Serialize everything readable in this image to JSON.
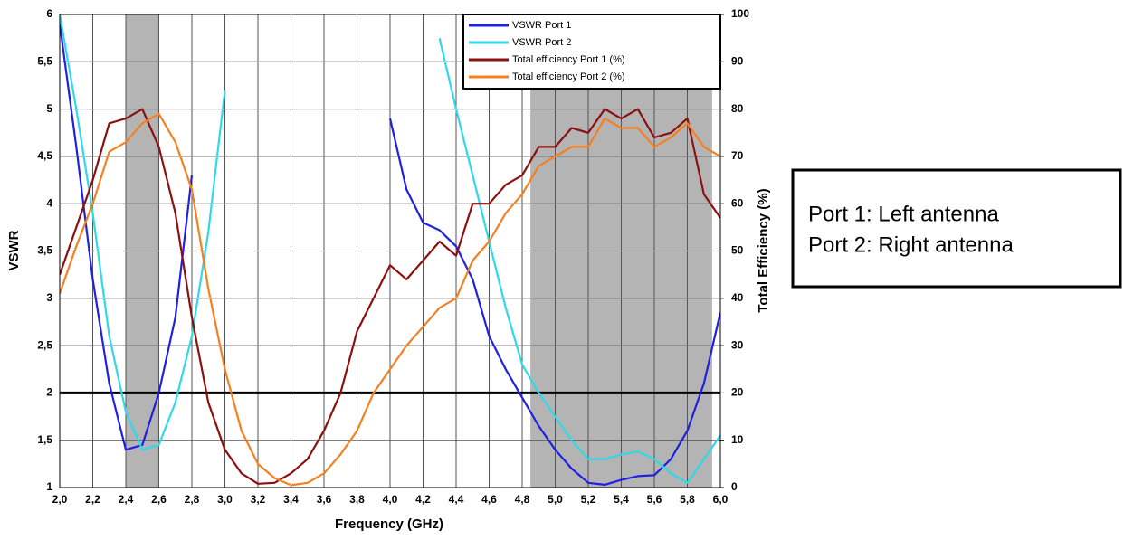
{
  "chart_data": {
    "type": "line",
    "x_label": "Frequency (GHz)",
    "y_label": "VSWR",
    "y2_label": "Total Efficiency (%)",
    "x": [
      2.0,
      2.1,
      2.2,
      2.3,
      2.4,
      2.5,
      2.6,
      2.7,
      2.8,
      2.9,
      3.0,
      3.1,
      3.2,
      3.3,
      3.4,
      3.5,
      3.6,
      3.7,
      3.8,
      3.9,
      4.0,
      4.1,
      4.2,
      4.3,
      4.4,
      4.5,
      4.6,
      4.7,
      4.8,
      4.9,
      5.0,
      5.1,
      5.2,
      5.3,
      5.4,
      5.5,
      5.6,
      5.7,
      5.8,
      5.9,
      6.0
    ],
    "series": [
      {
        "name": "VSWR Port 1",
        "color": "#2020e0",
        "values": [
          5.9,
          4.6,
          3.2,
          2.1,
          1.4,
          1.45,
          2.0,
          2.8,
          4.3,
          null,
          null,
          null,
          null,
          null,
          null,
          null,
          null,
          null,
          null,
          null,
          4.9,
          4.15,
          3.8,
          3.72,
          3.55,
          3.2,
          2.6,
          2.25,
          1.95,
          1.65,
          1.4,
          1.2,
          1.05,
          1.03,
          1.08,
          1.12,
          1.13,
          1.3,
          1.6,
          2.1,
          2.85
        ]
      },
      {
        "name": "VSWR Port 2",
        "color": "#30d8e8",
        "values": [
          6,
          5.0,
          3.9,
          2.6,
          1.8,
          1.4,
          1.45,
          1.9,
          2.6,
          3.7,
          5.2,
          null,
          null,
          null,
          null,
          null,
          null,
          null,
          null,
          null,
          null,
          null,
          null,
          5.75,
          5.0,
          4.3,
          3.6,
          2.9,
          2.3,
          2.0,
          1.75,
          1.5,
          1.3,
          1.3,
          1.35,
          1.38,
          1.3,
          1.15,
          1.05,
          1.3,
          1.55
        ]
      },
      {
        "name": "Total efficiency Port 1 (%)",
        "color": "#8b1010",
        "axis": "y2",
        "values": [
          45,
          55,
          65,
          77,
          78,
          80,
          72,
          58,
          36,
          18,
          8,
          3,
          0.8,
          1,
          3,
          6,
          12,
          20,
          33,
          40,
          47,
          44,
          48,
          52,
          49,
          60,
          60,
          64,
          66,
          72,
          72,
          76,
          75,
          80,
          78,
          80,
          74,
          75,
          78,
          62,
          57
        ]
      },
      {
        "name": "Total efficiency Port 2 (%)",
        "color": "#f58020",
        "axis": "y2",
        "values": [
          41,
          51,
          60,
          71,
          73,
          77,
          79,
          73,
          63,
          42,
          25,
          12,
          5,
          2,
          0.5,
          1,
          3,
          7,
          12,
          20,
          25,
          30,
          34,
          38,
          40,
          48,
          52,
          58,
          62,
          68,
          70,
          72,
          72,
          78,
          76,
          76,
          72,
          74,
          77,
          72,
          70
        ]
      }
    ],
    "xlim": [
      2.0,
      6.0
    ],
    "xticks": [
      {
        "value": 2.0,
        "label": "2,0"
      },
      {
        "value": 2.2,
        "label": "2,2"
      },
      {
        "value": 2.4,
        "label": "2,4"
      },
      {
        "value": 2.6,
        "label": "2,6"
      },
      {
        "value": 2.8,
        "label": "2,8"
      },
      {
        "value": 3.0,
        "label": "3,0"
      },
      {
        "value": 3.2,
        "label": "3,2"
      },
      {
        "value": 3.4,
        "label": "3,4"
      },
      {
        "value": 3.6,
        "label": "3,6"
      },
      {
        "value": 3.8,
        "label": "3,8"
      },
      {
        "value": 4.0,
        "label": "4,0"
      },
      {
        "value": 4.2,
        "label": "4,2"
      },
      {
        "value": 4.4,
        "label": "4,4"
      },
      {
        "value": 4.6,
        "label": "4,6"
      },
      {
        "value": 4.8,
        "label": "4,8"
      },
      {
        "value": 5.0,
        "label": "5,0"
      },
      {
        "value": 5.2,
        "label": "5,2"
      },
      {
        "value": 5.4,
        "label": "5,4"
      },
      {
        "value": 5.6,
        "label": "5,6"
      },
      {
        "value": 5.8,
        "label": "5,8"
      },
      {
        "value": 6.0,
        "label": "6,0"
      }
    ],
    "ylim": [
      1,
      6
    ],
    "yticks": [
      1,
      {
        "value": 1.5,
        "label": "1,5"
      },
      2,
      {
        "value": 2.5,
        "label": "2,5"
      },
      3,
      {
        "value": 3.5,
        "label": "3,5"
      },
      4,
      {
        "value": 4.5,
        "label": "4,5"
      },
      5,
      {
        "value": 5.5,
        "label": "5,5"
      },
      6
    ],
    "y2lim": [
      0,
      100
    ],
    "y2ticks": [
      0,
      10,
      20,
      30,
      40,
      50,
      60,
      70,
      80,
      90,
      100
    ],
    "grid": true,
    "legend": "upper right",
    "shaded_bands": [
      {
        "from": 2.4,
        "to": 2.6
      },
      {
        "from": 4.85,
        "to": 5.95
      }
    ],
    "band_color": "#b4b4b4",
    "reference_line": 2,
    "annotations": [
      "Port 1: Left antenna",
      "Port 2: Right antenna"
    ]
  }
}
